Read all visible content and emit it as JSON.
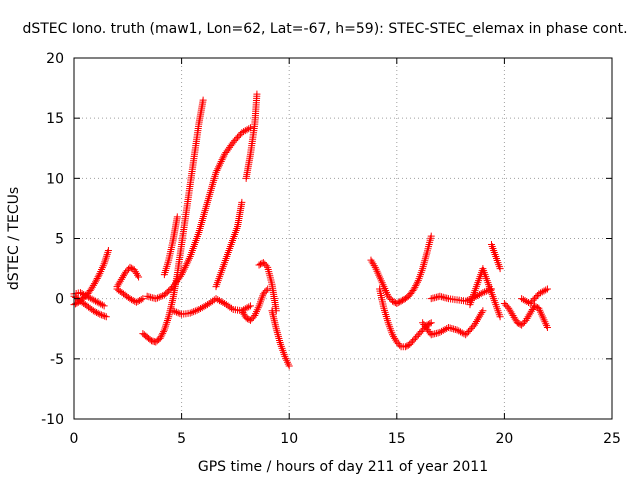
{
  "chart_data": {
    "type": "scatter",
    "title": "dSTEC Iono. truth (maw1, Lon=62, Lat=-67, h=59): STEC-STEC_elemax in phase cont.",
    "xlabel": "GPS time / hours of day 211 of year 2011",
    "ylabel": "dSTEC  / TECUs",
    "xlim": [
      0,
      25
    ],
    "ylim": [
      -10,
      20
    ],
    "xticks": [
      0,
      5,
      10,
      15,
      20,
      25
    ],
    "yticks": [
      -10,
      -5,
      0,
      5,
      10,
      15,
      20
    ],
    "grid": true,
    "marker": "+",
    "color": "#ff0000",
    "series": [
      {
        "x": [
          0.0,
          0.2,
          0.4,
          0.6,
          0.8,
          1.0,
          1.2,
          1.4,
          1.6
        ],
        "y": [
          -0.5,
          -0.3,
          0.0,
          0.3,
          0.8,
          1.4,
          2.1,
          2.9,
          4.0
        ]
      },
      {
        "x": [
          0.0,
          0.3,
          0.6,
          0.9,
          1.2,
          1.5
        ],
        "y": [
          0.2,
          -0.2,
          -0.6,
          -1.0,
          -1.3,
          -1.5
        ]
      },
      {
        "x": [
          0.0,
          0.3,
          0.6,
          1.0,
          1.4
        ],
        "y": [
          0.4,
          0.5,
          0.2,
          -0.2,
          -0.6
        ]
      },
      {
        "x": [
          2.0,
          2.2,
          2.4,
          2.6,
          2.8,
          3.0
        ],
        "y": [
          1.0,
          1.6,
          2.2,
          2.6,
          2.4,
          1.8
        ]
      },
      {
        "x": [
          2.0,
          2.3,
          2.6,
          2.9,
          3.2
        ],
        "y": [
          0.8,
          0.4,
          0.0,
          -0.3,
          0.0
        ]
      },
      {
        "x": [
          3.2,
          3.4,
          3.6,
          3.8,
          4.0,
          4.2,
          4.4,
          4.6,
          4.8,
          5.0,
          5.2,
          5.4,
          5.6,
          5.8,
          6.0
        ],
        "y": [
          -2.9,
          -3.2,
          -3.5,
          -3.6,
          -3.3,
          -2.6,
          -1.5,
          0.0,
          2.0,
          4.5,
          7.0,
          9.5,
          12.0,
          14.5,
          16.5
        ]
      },
      {
        "x": [
          3.4,
          3.8,
          4.2,
          4.6,
          5.0,
          5.4,
          5.8,
          6.2,
          6.6,
          7.0,
          7.4,
          7.8,
          8.2
        ],
        "y": [
          0.2,
          0.0,
          0.3,
          1.0,
          2.0,
          3.5,
          5.5,
          8.0,
          10.5,
          12.0,
          13.0,
          13.8,
          14.2
        ]
      },
      {
        "x": [
          4.2,
          4.4,
          4.6,
          4.8
        ],
        "y": [
          2.0,
          3.2,
          4.8,
          6.8
        ]
      },
      {
        "x": [
          4.6,
          5.0,
          5.4,
          5.8,
          6.2,
          6.6,
          7.0,
          7.4,
          7.8,
          8.2
        ],
        "y": [
          -1.0,
          -1.3,
          -1.2,
          -0.9,
          -0.5,
          0.0,
          -0.4,
          -0.9,
          -1.0,
          -0.6
        ]
      },
      {
        "x": [
          6.6,
          6.8,
          7.0,
          7.2,
          7.4,
          7.6,
          7.8
        ],
        "y": [
          1.0,
          2.0,
          3.0,
          4.0,
          5.0,
          6.0,
          8.0
        ]
      },
      {
        "x": [
          7.8,
          8.0,
          8.2,
          8.4,
          8.6,
          8.8,
          9.0
        ],
        "y": [
          -1.0,
          -1.6,
          -1.8,
          -1.4,
          -0.6,
          0.4,
          0.8
        ]
      },
      {
        "x": [
          8.0,
          8.2,
          8.4,
          8.5
        ],
        "y": [
          10.0,
          12.0,
          14.5,
          17.0
        ]
      },
      {
        "x": [
          8.6,
          8.8,
          9.0,
          9.2,
          9.4
        ],
        "y": [
          2.8,
          3.0,
          2.6,
          1.2,
          -1.0
        ]
      },
      {
        "x": [
          9.2,
          9.4,
          9.6,
          9.8,
          10.0
        ],
        "y": [
          -1.0,
          -2.5,
          -3.8,
          -4.8,
          -5.6
        ]
      },
      {
        "x": [
          13.8,
          14.0,
          14.2,
          14.4,
          14.6,
          14.8,
          15.0,
          15.2,
          15.4,
          15.6,
          15.8,
          16.0,
          16.2,
          16.4,
          16.6
        ],
        "y": [
          3.2,
          2.6,
          1.8,
          1.0,
          0.2,
          -0.2,
          -0.4,
          -0.2,
          0.0,
          0.3,
          0.8,
          1.5,
          2.5,
          3.8,
          5.2
        ]
      },
      {
        "x": [
          14.2,
          14.4,
          14.6,
          14.8,
          15.0,
          15.2,
          15.4,
          15.6,
          15.8,
          16.0,
          16.2,
          16.4,
          16.6
        ],
        "y": [
          0.8,
          -0.8,
          -2.0,
          -3.0,
          -3.6,
          -4.0,
          -4.0,
          -3.8,
          -3.4,
          -3.0,
          -2.6,
          -2.2,
          -2.0
        ]
      },
      {
        "x": [
          16.2,
          16.6,
          17.0,
          17.4,
          17.8,
          18.2,
          18.6,
          19.0
        ],
        "y": [
          -2.0,
          -3.0,
          -2.8,
          -2.4,
          -2.6,
          -3.0,
          -2.2,
          -1.0
        ]
      },
      {
        "x": [
          16.6,
          17.0,
          17.4,
          17.8,
          18.2,
          18.6,
          19.0,
          19.4
        ],
        "y": [
          0.0,
          0.2,
          0.0,
          -0.1,
          -0.2,
          0.1,
          0.5,
          0.8
        ]
      },
      {
        "x": [
          18.4,
          18.6,
          18.8,
          19.0,
          19.2,
          19.4,
          19.6,
          19.8
        ],
        "y": [
          -0.5,
          0.5,
          1.5,
          2.5,
          1.5,
          0.5,
          -0.5,
          -1.5
        ]
      },
      {
        "x": [
          19.4,
          19.6,
          19.8
        ],
        "y": [
          4.5,
          3.5,
          2.5
        ]
      },
      {
        "x": [
          20.0,
          20.2,
          20.4,
          20.6,
          20.8,
          21.0,
          21.2,
          21.4,
          21.6,
          21.8,
          22.0
        ],
        "y": [
          -0.4,
          -0.8,
          -1.4,
          -2.0,
          -2.2,
          -1.8,
          -1.2,
          -0.6,
          -0.8,
          -1.6,
          -2.4
        ]
      },
      {
        "x": [
          20.8,
          21.2,
          21.6,
          22.0
        ],
        "y": [
          0.0,
          -0.4,
          0.4,
          0.8
        ]
      }
    ]
  }
}
